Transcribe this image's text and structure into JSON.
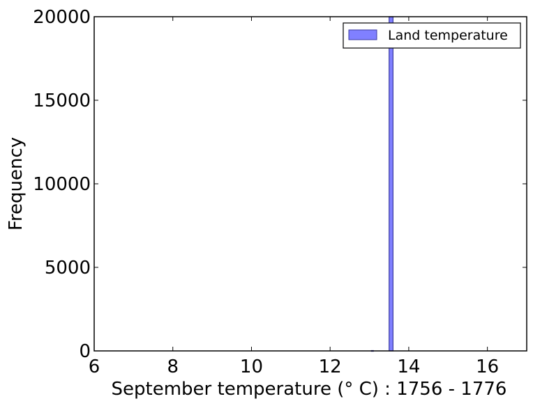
{
  "chart_data": {
    "type": "bar",
    "subtype": "histogram",
    "xlabel": "September temperature (° C) : 1756 - 1776",
    "ylabel": "Frequency",
    "xlim": [
      6,
      17
    ],
    "ylim": [
      0,
      20000
    ],
    "xticks": [
      "6",
      "8",
      "10",
      "12",
      "14",
      "16"
    ],
    "yticks": [
      "0",
      "5000",
      "10000",
      "15000",
      "20000"
    ],
    "legend": {
      "position": "top-right",
      "entries": [
        "Land temperature"
      ]
    },
    "grid": false,
    "colors": {
      "bar_fill": "#8080ff",
      "bar_edge": "#3a3aa0"
    },
    "series": [
      {
        "name": "Land temperature",
        "bins": [
          {
            "x0": 13.05,
            "x1": 13.1,
            "value": 20
          },
          {
            "x0": 13.5,
            "x1": 13.6,
            "value": 20000
          }
        ]
      }
    ]
  }
}
